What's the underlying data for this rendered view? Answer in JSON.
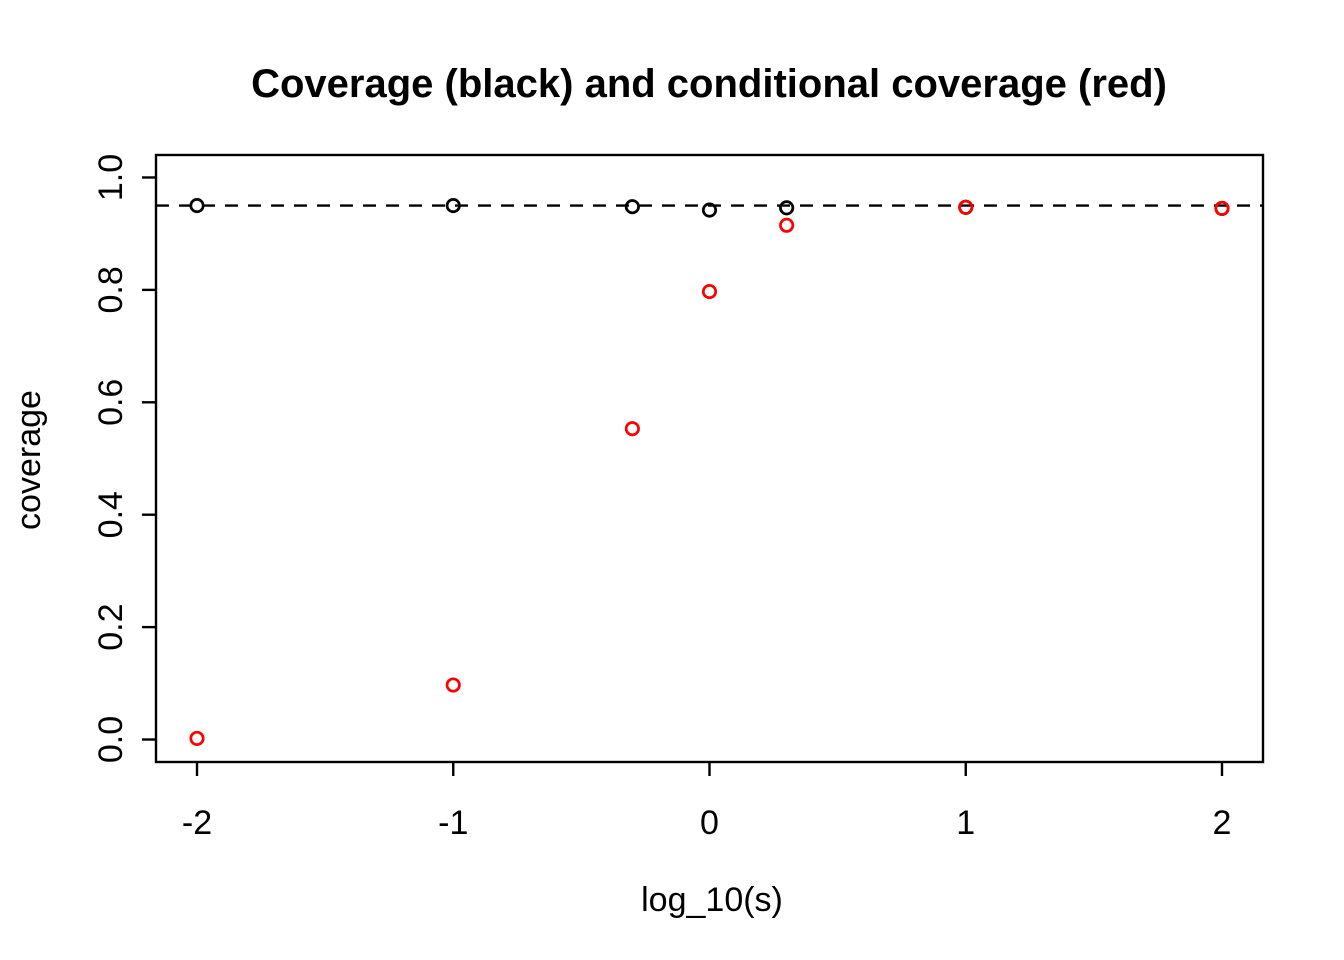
{
  "chart_data": {
    "type": "scatter",
    "title": "Coverage (black) and conditional coverage (red)",
    "xlabel": "log_10(s)",
    "ylabel": "coverage",
    "xlim": [
      -2.16,
      2.16
    ],
    "ylim": [
      -0.04,
      1.04
    ],
    "grid": false,
    "legend": "none (series identified in title)",
    "x_ticks": {
      "values": [
        -2,
        -1,
        0,
        1,
        2
      ],
      "labels": [
        "-2",
        "-1",
        "0",
        "1",
        "2"
      ]
    },
    "y_ticks": {
      "values": [
        0.0,
        0.2,
        0.4,
        0.6,
        0.8,
        1.0
      ],
      "labels": [
        "0.0",
        "0.2",
        "0.4",
        "0.6",
        "0.8",
        "1.0"
      ]
    },
    "reference_line": {
      "y": 0.95,
      "style": "dashed",
      "color": "#000000"
    },
    "x": [
      -2,
      -1,
      -0.301,
      0,
      0.301,
      1,
      2
    ],
    "series": [
      {
        "name": "coverage",
        "color": "#000000",
        "marker": "open-circle",
        "values": [
          0.95,
          0.95,
          0.948,
          0.942,
          0.946,
          0.947,
          0.945
        ]
      },
      {
        "name": "conditional coverage",
        "color": "#ff0000",
        "marker": "open-circle",
        "values": [
          0.002,
          0.097,
          0.553,
          0.797,
          0.915,
          0.947,
          0.945
        ]
      }
    ]
  }
}
